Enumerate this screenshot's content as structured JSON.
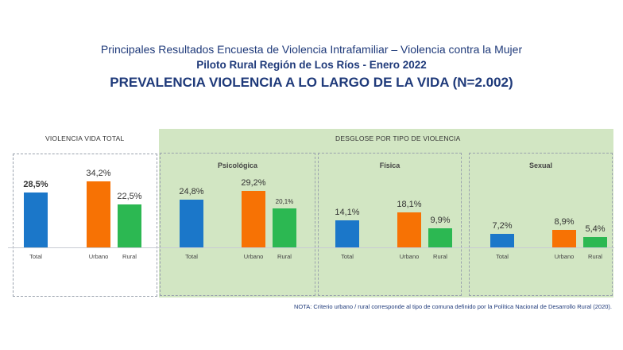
{
  "header": {
    "line1": "Principales Resultados Encuesta de Violencia Intrafamiliar – Violencia contra la Mujer",
    "line2": "Piloto Rural Región de Los Ríos  - Enero 2022",
    "line3": "PREVALENCIA VIOLENCIA A LO LARGO DE LA VIDA  (N=2.002)"
  },
  "sections": {
    "total_header": "VIOLENCIA VIDA TOTAL",
    "breakdown_header": "DESGLOSE POR TIPO DE VIOLENCIA"
  },
  "colors": {
    "Total": "#1b77c9",
    "Urbano": "#f77204",
    "Rural": "#2cb852",
    "breakdown_bg": "#d2e6c3",
    "title": "#1f3a7a"
  },
  "chart_data": [
    {
      "type": "bar",
      "title": "",
      "categories": [
        "Total",
        "Urbano",
        "Rural"
      ],
      "values": [
        28.5,
        34.2,
        22.5
      ],
      "labels": [
        "28,5%",
        "34,2%",
        "22,5%"
      ],
      "unit": "%"
    },
    {
      "type": "bar",
      "title": "Psicológica",
      "categories": [
        "Total",
        "Urbano",
        "Rural"
      ],
      "values": [
        24.8,
        29.2,
        20.1
      ],
      "labels": [
        "24,8%",
        "29,2%",
        "20,1%"
      ],
      "unit": "%"
    },
    {
      "type": "bar",
      "title": "Física",
      "categories": [
        "Total",
        "Urbano",
        "Rural"
      ],
      "values": [
        14.1,
        18.1,
        9.9
      ],
      "labels": [
        "14,1%",
        "18,1%",
        "9,9%"
      ],
      "unit": "%"
    },
    {
      "type": "bar",
      "title": "Sexual",
      "categories": [
        "Total",
        "Urbano",
        "Rural"
      ],
      "values": [
        7.2,
        8.9,
        5.4
      ],
      "labels": [
        "7,2%",
        "8,9%",
        "5,4%"
      ],
      "unit": "%"
    }
  ],
  "note": "NOTA: Criterio urbano / rural  corresponde al tipo de comuna definido por la Política Nacional de Desarrollo Rural (2020)."
}
